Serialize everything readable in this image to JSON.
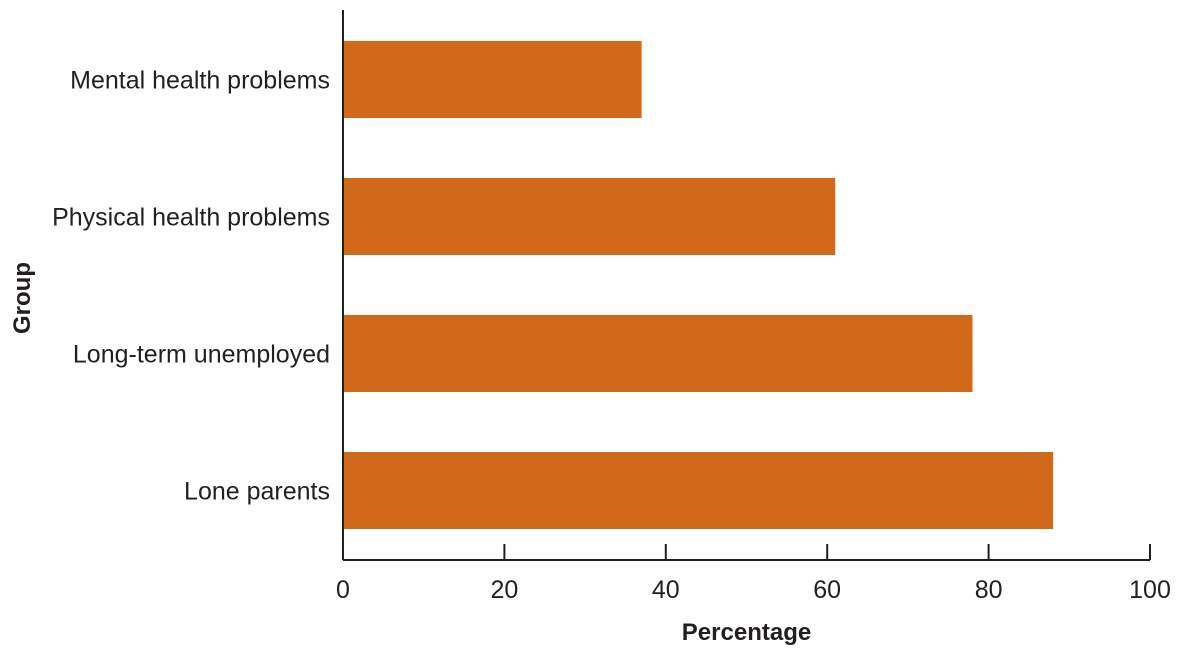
{
  "chart_data": {
    "type": "bar",
    "orientation": "horizontal",
    "categories": [
      "Mental health problems",
      "Physical health problems",
      "Long-term unemployed",
      "Lone parents"
    ],
    "values": [
      37,
      61,
      78,
      88
    ],
    "xlabel": "Percentage",
    "ylabel": "Group",
    "xlim": [
      0,
      100
    ],
    "xticks": [
      "0",
      "20",
      "40",
      "60",
      "80",
      "100"
    ],
    "grid": false,
    "legend": "none",
    "bar_color": "#d2691a",
    "axis_color": "#231f20"
  }
}
